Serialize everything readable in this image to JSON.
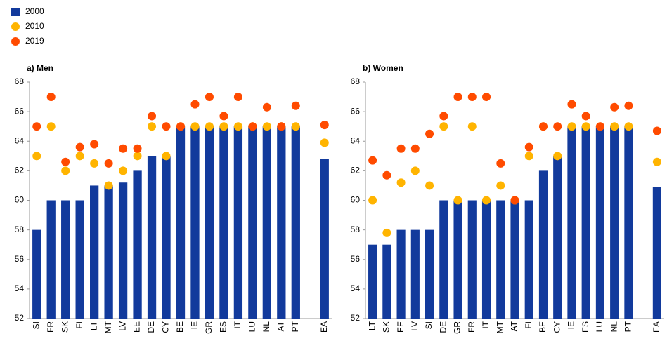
{
  "chart_data": [
    {
      "type": "bar",
      "title": "a) Men",
      "categories": [
        "SI",
        "FR",
        "SK",
        "FI",
        "LT",
        "MT",
        "LV",
        "EE",
        "DE",
        "CY",
        "BE",
        "IE",
        "GR",
        "ES",
        "IT",
        "LU",
        "NL",
        "AT",
        "PT",
        null,
        "EA"
      ],
      "series": [
        {
          "name": "2000",
          "color": "#123a9c",
          "values": [
            58,
            60,
            60,
            60,
            61,
            61,
            61.2,
            62,
            63,
            63,
            65,
            65,
            65,
            65,
            65,
            65,
            65,
            65,
            65,
            null,
            62.8
          ]
        },
        {
          "name": "2010",
          "color": "#ffb400",
          "values": [
            63,
            65,
            62,
            63,
            62.5,
            61,
            62,
            63,
            65,
            63,
            65,
            65,
            65,
            65,
            65,
            65,
            65,
            65,
            65,
            null,
            63.9
          ]
        },
        {
          "name": "2019",
          "color": "#ff4b00",
          "values": [
            65,
            67,
            62.6,
            63.6,
            63.8,
            62.5,
            63.5,
            63.5,
            65.7,
            65,
            65,
            66.5,
            67,
            65.7,
            67,
            65,
            66.3,
            65,
            66.4,
            null,
            65.1
          ]
        }
      ],
      "ylim": [
        52,
        68
      ],
      "yticks": [
        52,
        54,
        56,
        58,
        60,
        62,
        64,
        66,
        68
      ],
      "grid": false
    },
    {
      "type": "bar",
      "title": "b) Women",
      "categories": [
        "LT",
        "SK",
        "EE",
        "LV",
        "SI",
        "DE",
        "GR",
        "FR",
        "IT",
        "MT",
        "AT",
        "FI",
        "BE",
        "CY",
        "IE",
        "ES",
        "LU",
        "NL",
        "PT",
        null,
        "EA"
      ],
      "series": [
        {
          "color": "#123a9c",
          "values": [
            57,
            57,
            58,
            58,
            58,
            60,
            60,
            60,
            60,
            60,
            60,
            60,
            62,
            63,
            65,
            65,
            65,
            65,
            65,
            null,
            60.9
          ]
        },
        {
          "color": "#ffb400",
          "values": [
            60,
            57.8,
            61.2,
            62,
            61,
            65,
            60,
            65,
            60,
            61,
            60,
            63,
            65,
            63,
            65,
            65,
            65,
            65,
            65,
            null,
            62.6
          ]
        },
        {
          "color": "#ff4b00",
          "values": [
            62.7,
            61.7,
            63.5,
            63.5,
            64.5,
            65.7,
            67,
            67,
            67,
            62.5,
            60,
            63.6,
            65,
            65,
            66.5,
            65.7,
            65,
            66.3,
            66.4,
            null,
            64.7
          ]
        }
      ],
      "ylim": [
        52,
        68
      ],
      "yticks": [
        52,
        54,
        56,
        58,
        60,
        62,
        64,
        66,
        68
      ],
      "grid": false
    }
  ]
}
